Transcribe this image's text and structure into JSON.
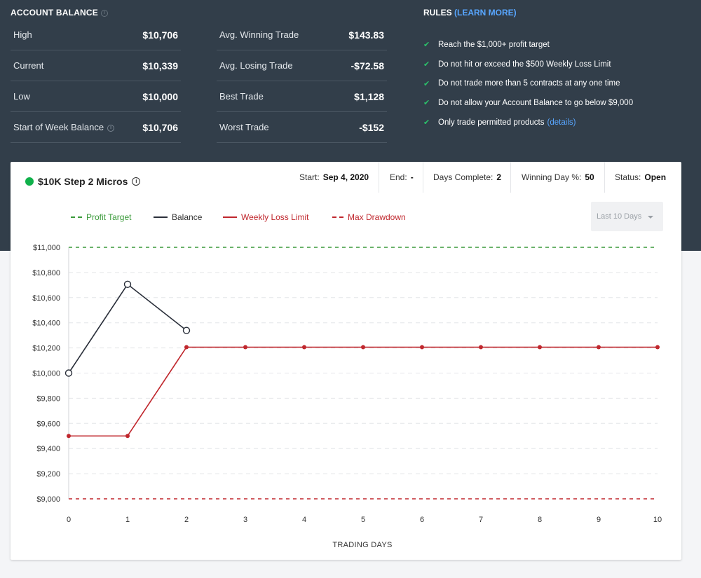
{
  "account_balance": {
    "title": "ACCOUNT BALANCE",
    "left": [
      {
        "label": "High",
        "value": "$10,706"
      },
      {
        "label": "Current",
        "value": "$10,339"
      },
      {
        "label": "Low",
        "value": "$10,000"
      },
      {
        "label": "Start of Week Balance",
        "value": "$10,706"
      }
    ],
    "right": [
      {
        "label": "Avg. Winning Trade",
        "value": "$143.83"
      },
      {
        "label": "Avg. Losing Trade",
        "value": "-$72.58"
      },
      {
        "label": "Best Trade",
        "value": "$1,128"
      },
      {
        "label": "Worst Trade",
        "value": "-$152"
      }
    ]
  },
  "rules": {
    "title": "RULES",
    "learn_more": "(LEARN MORE)",
    "items": [
      "Reach the $1,000+ profit target",
      "Do not hit or exceed the $500 Weekly Loss Limit",
      "Do not trade more than 5 contracts at any one time",
      "Do not allow your Account Balance to go below $9,000",
      "Only trade permitted products"
    ],
    "details_link": "(details)"
  },
  "card": {
    "account_name": "$10K Step 2 Micros",
    "start_label": "Start:",
    "start_value": "Sep 4, 2020",
    "end_label": "End:",
    "end_value": "-",
    "days_label": "Days Complete:",
    "days_value": "2",
    "winning_label": "Winning Day %:",
    "winning_value": "50",
    "status_label": "Status:",
    "status_value": "Open",
    "range_selected": "Last 10 Days"
  },
  "colors": {
    "profit_target": "#3a9a3a",
    "balance": "#2a2f3a",
    "weekly_loss": "#c0272d",
    "max_drawdown": "#c0272d",
    "status_dot": "#10b14b"
  },
  "chart_data": {
    "type": "line",
    "xlabel": "TRADING DAYS",
    "x": [
      0,
      1,
      2,
      3,
      4,
      5,
      6,
      7,
      8,
      9,
      10
    ],
    "ylim": [
      9000,
      11000
    ],
    "y_ticks": [
      "$9,000",
      "$9,200",
      "$9,400",
      "$9,600",
      "$9,800",
      "$10,000",
      "$10,200",
      "$10,400",
      "$10,600",
      "$10,800",
      "$11,000"
    ],
    "legend_position": "top-left",
    "series": [
      {
        "name": "Profit Target",
        "style": "dashed",
        "x": [
          0,
          10
        ],
        "values": [
          11000,
          11000
        ]
      },
      {
        "name": "Balance",
        "style": "solid",
        "x": [
          0,
          1,
          2
        ],
        "values": [
          10000,
          10706,
          10339
        ]
      },
      {
        "name": "Weekly Loss Limit",
        "style": "solid",
        "x": [
          0,
          1,
          2,
          3,
          4,
          5,
          6,
          7,
          8,
          9,
          10
        ],
        "values": [
          9500,
          9500,
          10206,
          10206,
          10206,
          10206,
          10206,
          10206,
          10206,
          10206,
          10206
        ]
      },
      {
        "name": "Max Drawdown",
        "style": "dashed",
        "x": [
          0,
          10
        ],
        "values": [
          9000,
          9000
        ]
      }
    ]
  }
}
